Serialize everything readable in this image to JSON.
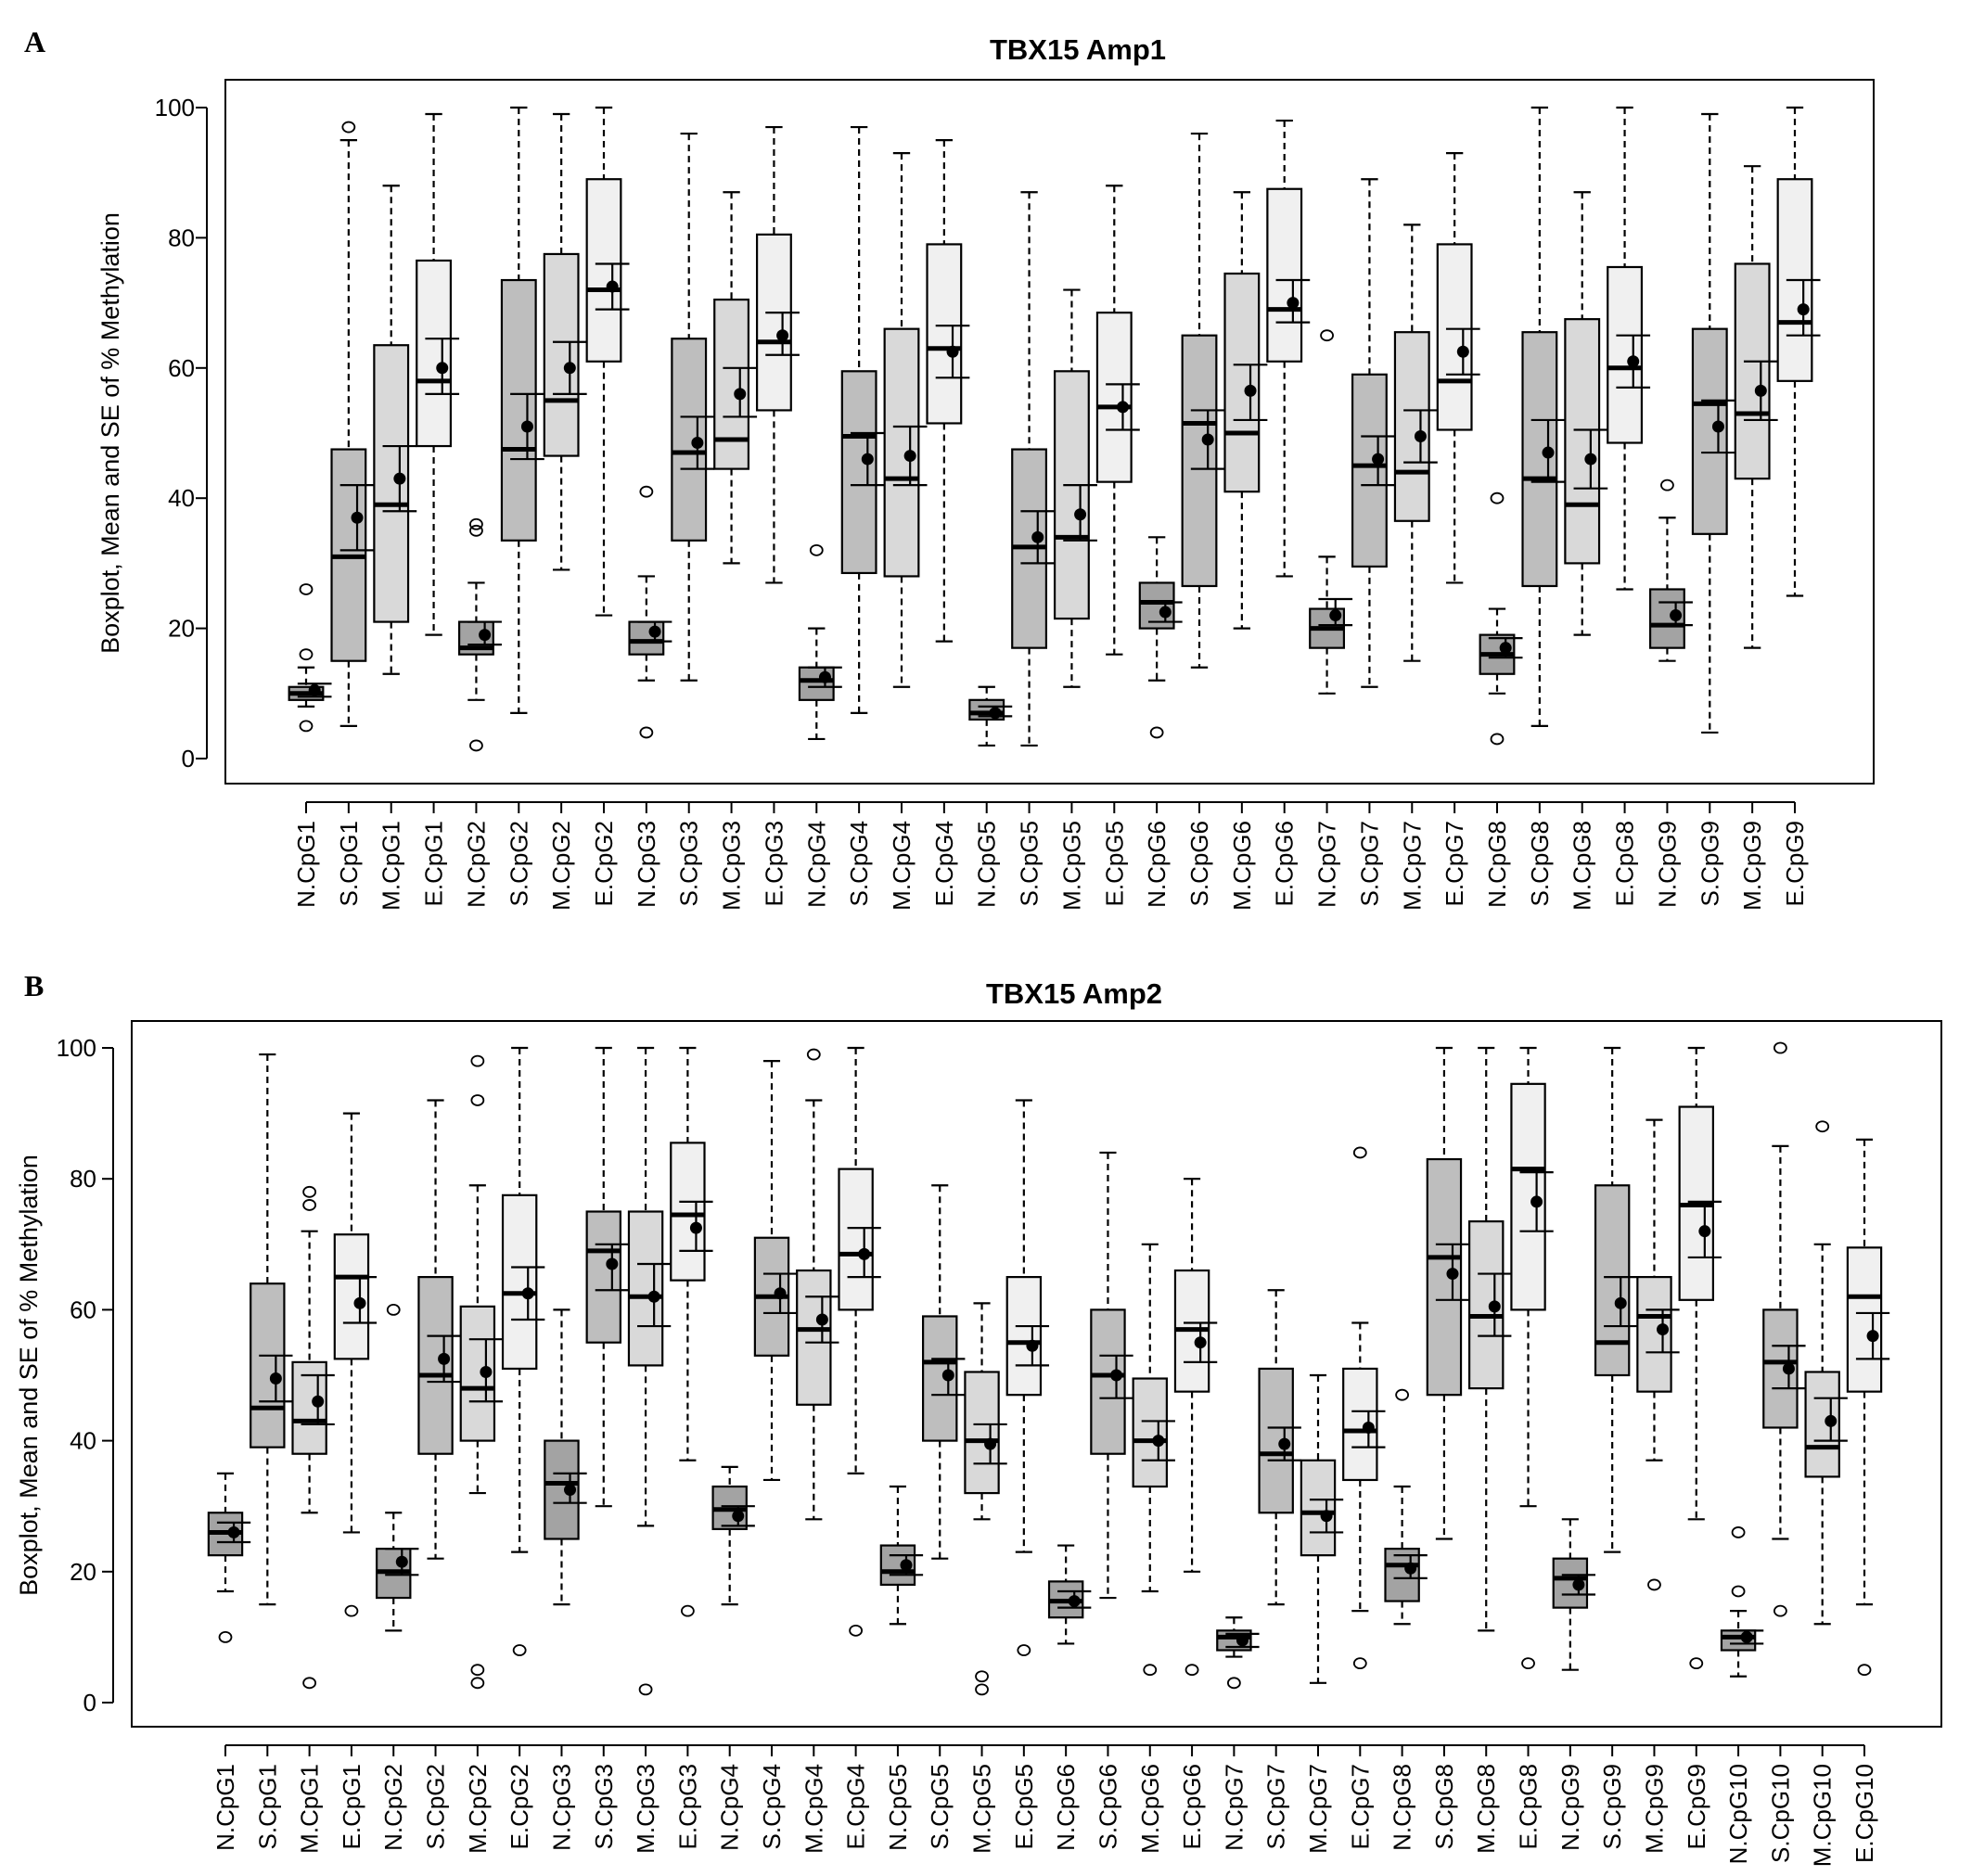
{
  "chart_data": [
    {
      "type": "boxplot",
      "panel_letter": "A",
      "title": "TBX15 Amp1",
      "ylabel": "Boxplot, Mean and SE of % Methylation",
      "xlabel": "",
      "ylim": [
        0,
        100
      ],
      "yticks": [
        "0",
        "20",
        "40",
        "60",
        "80",
        "100"
      ],
      "group_colors": {
        "N": "#a3a3a3",
        "S": "#bebebe",
        "M": "#d9d9d9",
        "E": "#f0f0f0"
      },
      "fields": [
        "label",
        "whisker_low",
        "q1",
        "median",
        "q3",
        "whisker_high",
        "mean",
        "se_low",
        "se_high",
        "outliers"
      ],
      "boxes": [
        [
          "N.CpG1",
          8,
          9,
          10,
          11,
          14,
          10.5,
          9.5,
          11.5,
          [
            26,
            16,
            5
          ]
        ],
        [
          "S.CpG1",
          5,
          15,
          31,
          47.5,
          95,
          37,
          32,
          42,
          [
            97
          ]
        ],
        [
          "M.CpG1",
          13,
          21,
          39,
          63.5,
          88,
          43,
          38,
          48,
          []
        ],
        [
          "E.CpG1",
          19,
          48,
          58,
          76.5,
          99,
          60,
          56,
          64.5,
          []
        ],
        [
          "N.CpG2",
          9,
          16,
          17,
          21,
          27,
          19,
          17.5,
          21,
          [
            36,
            35,
            2
          ]
        ],
        [
          "S.CpG2",
          7,
          33.5,
          47.5,
          73.5,
          100,
          51,
          46,
          56,
          []
        ],
        [
          "M.CpG2",
          29,
          46.5,
          55,
          77.5,
          99,
          60,
          56,
          64,
          []
        ],
        [
          "E.CpG2",
          22,
          61,
          72,
          89,
          100,
          72.5,
          69,
          76,
          []
        ],
        [
          "N.CpG3",
          12,
          16,
          18,
          21,
          28,
          19.5,
          18,
          21,
          [
            41,
            4
          ]
        ],
        [
          "S.CpG3",
          12,
          33.5,
          47,
          64.5,
          96,
          48.5,
          44.5,
          52.5,
          []
        ],
        [
          "M.CpG3",
          30,
          44.5,
          49,
          70.5,
          87,
          56,
          52.5,
          60,
          []
        ],
        [
          "E.CpG3",
          27,
          53.5,
          64,
          80.5,
          97,
          65,
          62,
          68.5,
          []
        ],
        [
          "N.CpG4",
          3,
          9,
          12,
          14,
          20,
          12.5,
          11,
          14,
          [
            32
          ]
        ],
        [
          "S.CpG4",
          7,
          28.5,
          49.5,
          59.5,
          97,
          46,
          42,
          50,
          []
        ],
        [
          "M.CpG4",
          11,
          28,
          43,
          66,
          93,
          46.5,
          42,
          51,
          []
        ],
        [
          "E.CpG4",
          18,
          51.5,
          63,
          79,
          95,
          62.5,
          58.5,
          66.5,
          []
        ],
        [
          "N.CpG5",
          2,
          6,
          7,
          9,
          11,
          7,
          6.5,
          8,
          []
        ],
        [
          "S.CpG5",
          2,
          17,
          32.5,
          47.5,
          87,
          34,
          30,
          38,
          []
        ],
        [
          "M.CpG5",
          11,
          21.5,
          34,
          59.5,
          72,
          37.5,
          33.5,
          42,
          []
        ],
        [
          "E.CpG5",
          16,
          42.5,
          54,
          68.5,
          88,
          54,
          50.5,
          57.5,
          []
        ],
        [
          "N.CpG6",
          12,
          20,
          24,
          27,
          34,
          22.5,
          21,
          24,
          [
            4
          ]
        ],
        [
          "S.CpG6",
          14,
          26.5,
          51.5,
          65,
          96,
          49,
          44.5,
          53.5,
          []
        ],
        [
          "M.CpG6",
          20,
          41,
          50,
          74.5,
          87,
          56.5,
          52,
          60.5,
          []
        ],
        [
          "E.CpG6",
          28,
          61,
          69,
          87.5,
          98,
          70,
          67,
          73.5,
          []
        ],
        [
          "N.CpG7",
          10,
          17,
          20,
          23,
          31,
          22,
          20.5,
          24.5,
          [
            65
          ]
        ],
        [
          "S.CpG7",
          11,
          29.5,
          45,
          59,
          89,
          46,
          42,
          49.5,
          []
        ],
        [
          "M.CpG7",
          15,
          36.5,
          44,
          65.5,
          82,
          49.5,
          45.5,
          53.5,
          []
        ],
        [
          "E.CpG7",
          27,
          50.5,
          58,
          79,
          93,
          62.5,
          59,
          66,
          []
        ],
        [
          "N.CpG8",
          10,
          13,
          16,
          19,
          23,
          17,
          15.5,
          18.5,
          [
            40,
            3
          ]
        ],
        [
          "S.CpG8",
          5,
          26.5,
          43,
          65.5,
          100,
          47,
          42.5,
          52,
          []
        ],
        [
          "M.CpG8",
          19,
          30,
          39,
          67.5,
          87,
          46,
          41.5,
          50.5,
          []
        ],
        [
          "E.CpG8",
          26,
          48.5,
          60,
          75.5,
          100,
          61,
          57,
          65,
          []
        ],
        [
          "N.CpG9",
          15,
          17,
          20.5,
          26,
          37,
          22,
          20.5,
          24,
          [
            42
          ]
        ],
        [
          "S.CpG9",
          4,
          34.5,
          54.5,
          66,
          99,
          51,
          47,
          55,
          []
        ],
        [
          "M.CpG9",
          17,
          43,
          53,
          76,
          91,
          56.5,
          52,
          61,
          []
        ],
        [
          "E.CpG9",
          25,
          58,
          67,
          89,
          100,
          69,
          65,
          73.5,
          []
        ]
      ]
    },
    {
      "type": "boxplot",
      "panel_letter": "B",
      "title": "TBX15 Amp2",
      "ylabel": "Boxplot, Mean and SE of % Methylation",
      "xlabel": "",
      "ylim": [
        0,
        100
      ],
      "yticks": [
        "0",
        "20",
        "40",
        "60",
        "80",
        "100"
      ],
      "group_colors": {
        "N": "#a3a3a3",
        "S": "#bebebe",
        "M": "#d9d9d9",
        "E": "#f0f0f0"
      },
      "fields": [
        "label",
        "whisker_low",
        "q1",
        "median",
        "q3",
        "whisker_high",
        "mean",
        "se_low",
        "se_high",
        "outliers"
      ],
      "boxes": [
        [
          "N.CpG1",
          17,
          22.5,
          26,
          29,
          35,
          26,
          24.5,
          27.5,
          [
            10
          ]
        ],
        [
          "S.CpG1",
          15,
          39,
          45,
          64,
          99,
          49.5,
          46,
          53,
          []
        ],
        [
          "M.CpG1",
          29,
          38,
          43,
          52,
          72,
          46,
          42.5,
          50,
          [
            78,
            76,
            3
          ]
        ],
        [
          "E.CpG1",
          26,
          52.5,
          65,
          71.5,
          90,
          61,
          58,
          65,
          [
            14
          ]
        ],
        [
          "N.CpG2",
          11,
          16,
          20,
          23.5,
          29,
          21.5,
          19.5,
          23.5,
          [
            60
          ]
        ],
        [
          "S.CpG2",
          22,
          38,
          50,
          65,
          92,
          52.5,
          49,
          56,
          []
        ],
        [
          "M.CpG2",
          32,
          40,
          48,
          60.5,
          79,
          50.5,
          46,
          55.5,
          [
            98,
            92,
            5,
            3
          ]
        ],
        [
          "E.CpG2",
          23,
          51,
          62.5,
          77.5,
          100,
          62.5,
          58.5,
          66.5,
          [
            8
          ]
        ],
        [
          "N.CpG3",
          15,
          25,
          33.5,
          40,
          60,
          32.5,
          30.5,
          35,
          []
        ],
        [
          "S.CpG3",
          30,
          55,
          69,
          75,
          100,
          67,
          63,
          70,
          []
        ],
        [
          "M.CpG3",
          27,
          51.5,
          62,
          75,
          100,
          62,
          57.5,
          67,
          [
            2
          ]
        ],
        [
          "E.CpG3",
          37,
          64.5,
          74.5,
          85.5,
          100,
          72.5,
          69,
          76.5,
          [
            14
          ]
        ],
        [
          "N.CpG4",
          15,
          26.5,
          29.5,
          33,
          36,
          28.5,
          27,
          30,
          []
        ],
        [
          "S.CpG4",
          34,
          53,
          62,
          71,
          98,
          62.5,
          59.5,
          65.5,
          []
        ],
        [
          "M.CpG4",
          28,
          45.5,
          57,
          66,
          92,
          58.5,
          55,
          62,
          [
            99
          ]
        ],
        [
          "E.CpG4",
          35,
          60,
          68.5,
          81.5,
          100,
          68.5,
          65,
          72.5,
          [
            11
          ]
        ],
        [
          "N.CpG5",
          12,
          18,
          20,
          24,
          33,
          21,
          19.5,
          22.5,
          []
        ],
        [
          "S.CpG5",
          22,
          40,
          52,
          59,
          79,
          50,
          47,
          52.5,
          []
        ],
        [
          "M.CpG5",
          28,
          32,
          40,
          50.5,
          61,
          39.5,
          36.5,
          42.5,
          [
            4,
            2
          ]
        ],
        [
          "E.CpG5",
          23,
          47,
          55,
          65,
          92,
          54.5,
          51.5,
          57.5,
          [
            8
          ]
        ],
        [
          "N.CpG6",
          9,
          13,
          15.5,
          18.5,
          24,
          15.5,
          14.5,
          17,
          []
        ],
        [
          "S.CpG6",
          16,
          38,
          50,
          60,
          84,
          50,
          46.5,
          53,
          []
        ],
        [
          "M.CpG6",
          17,
          33,
          40,
          49.5,
          70,
          40,
          37,
          43,
          [
            5
          ]
        ],
        [
          "E.CpG6",
          20,
          47.5,
          57,
          66,
          80,
          55,
          52,
          58,
          [
            5
          ]
        ],
        [
          "N.CpG7",
          7,
          8,
          10,
          11,
          13,
          9.5,
          8.5,
          10.5,
          [
            3
          ]
        ],
        [
          "S.CpG7",
          15,
          29,
          38,
          51,
          63,
          39.5,
          37,
          42,
          []
        ],
        [
          "M.CpG7",
          3,
          22.5,
          29,
          37,
          50,
          28.5,
          26,
          31,
          []
        ],
        [
          "E.CpG7",
          14,
          34,
          41.5,
          51,
          58,
          42,
          39,
          44.5,
          [
            84,
            6
          ]
        ],
        [
          "N.CpG8",
          12,
          15.5,
          21,
          23.5,
          33,
          20.5,
          19,
          22.5,
          [
            47
          ]
        ],
        [
          "S.CpG8",
          25,
          47,
          68,
          83,
          100,
          65.5,
          61.5,
          70,
          []
        ],
        [
          "M.CpG8",
          11,
          48,
          59,
          73.5,
          100,
          60.5,
          56,
          65.5,
          []
        ],
        [
          "E.CpG8",
          30,
          60,
          81.5,
          94.5,
          100,
          76.5,
          72,
          81,
          [
            6
          ]
        ],
        [
          "N.CpG9",
          5,
          14.5,
          19,
          22,
          28,
          18,
          16.5,
          19.5,
          []
        ],
        [
          "S.CpG9",
          23,
          50,
          55,
          79,
          100,
          61,
          57.5,
          65,
          []
        ],
        [
          "M.CpG9",
          37,
          47.5,
          59,
          65,
          89,
          57,
          53.5,
          60,
          [
            18
          ]
        ],
        [
          "E.CpG9",
          28,
          61.5,
          76,
          91,
          100,
          72,
          68,
          76.5,
          [
            6
          ]
        ],
        [
          "N.CpG10",
          4,
          8,
          10,
          11,
          14,
          10,
          9,
          11,
          [
            26,
            17
          ]
        ],
        [
          "S.CpG10",
          25,
          42,
          52,
          60,
          85,
          51,
          48,
          54.5,
          [
            100,
            14
          ]
        ],
        [
          "M.CpG10",
          12,
          34.5,
          39,
          50.5,
          70,
          43,
          40,
          46.5,
          [
            88
          ]
        ],
        [
          "E.CpG10",
          15,
          47.5,
          62,
          69.5,
          86,
          56,
          52.5,
          59.5,
          [
            5
          ]
        ]
      ]
    }
  ]
}
